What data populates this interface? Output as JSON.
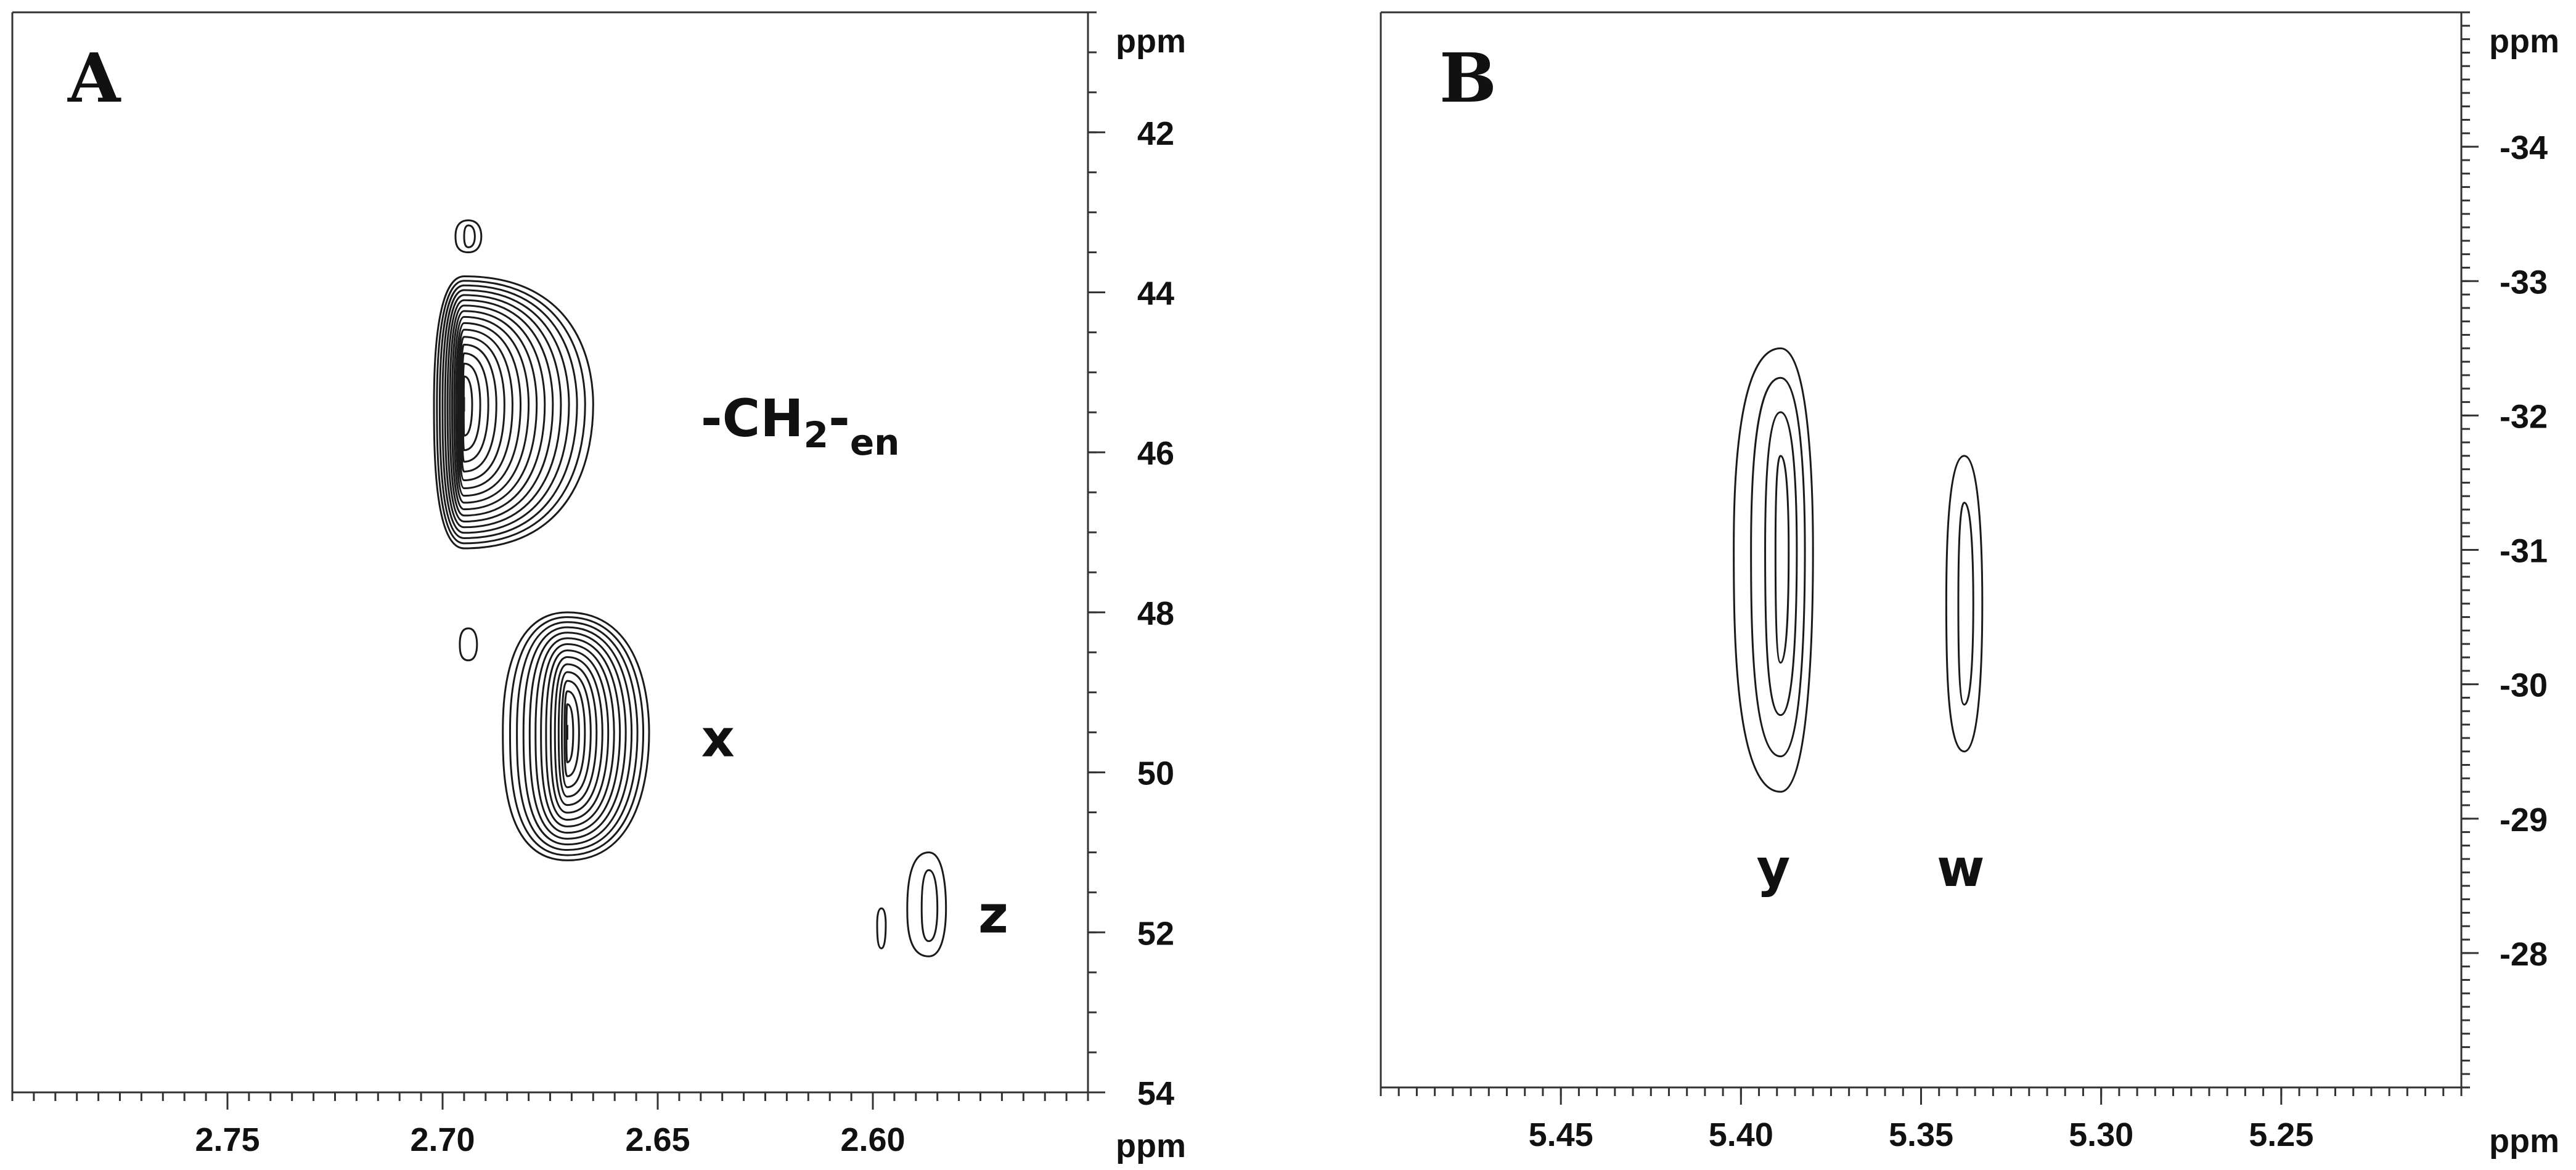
{
  "chart_data": [
    {
      "type": "contour",
      "panel_label": "A",
      "x_axis": {
        "unit": "ppm",
        "range": [
          2.8,
          2.55
        ],
        "ticks": [
          2.75,
          2.7,
          2.65,
          2.6
        ],
        "tick_labels": [
          "2.75",
          "2.70",
          "2.65",
          "2.60"
        ]
      },
      "y_axis": {
        "unit": "ppm",
        "position": "right",
        "range": [
          40.5,
          54
        ],
        "ticks": [
          42,
          44,
          46,
          48,
          50,
          52,
          54
        ],
        "tick_labels": [
          "42",
          "44",
          "46",
          "48",
          "50",
          "52",
          "54"
        ]
      },
      "peaks": [
        {
          "label": "-CH",
          "label_sub": "2",
          "label_tail": "-",
          "label_sub2": "en",
          "x": 2.695,
          "y": 45.4,
          "x_low": 2.702,
          "x_high": 2.665,
          "y_low": 43.8,
          "y_high": 47.2,
          "levels": 16,
          "label_at": [
            2.64,
            45.8
          ]
        },
        {
          "label": "x",
          "x": 2.671,
          "y": 49.5,
          "x_low": 2.686,
          "x_high": 2.652,
          "y_low": 48.0,
          "y_high": 51.1,
          "levels": 14,
          "label_at": [
            2.636,
            49.8
          ]
        },
        {
          "label": "z",
          "x": 2.587,
          "y": 51.7,
          "x_low": 2.592,
          "x_high": 2.583,
          "y_low": 51.0,
          "y_high": 52.3,
          "levels": 2,
          "label_at": [
            2.572,
            52.0
          ]
        },
        {
          "x": 2.598,
          "y": 51.9,
          "x_low": 2.599,
          "x_high": 2.597,
          "y_low": 51.7,
          "y_high": 52.2,
          "levels": 1
        },
        {
          "x": 2.694,
          "y": 43.3,
          "x_low": 2.697,
          "x_high": 2.691,
          "y_low": 43.1,
          "y_high": 43.5,
          "levels": 2
        },
        {
          "x": 2.694,
          "y": 48.4,
          "x_low": 2.696,
          "x_high": 2.692,
          "y_low": 48.2,
          "y_high": 48.6,
          "levels": 1
        }
      ]
    },
    {
      "type": "contour",
      "panel_label": "B",
      "x_axis": {
        "unit": "ppm",
        "range": [
          5.5,
          5.2
        ],
        "ticks": [
          5.45,
          5.4,
          5.35,
          5.3,
          5.25
        ],
        "tick_labels": [
          "5.45",
          "5.40",
          "5.35",
          "5.30",
          "5.25"
        ]
      },
      "y_axis": {
        "unit": "ppm",
        "position": "right",
        "range": [
          -35,
          -27
        ],
        "ticks": [
          -34,
          -33,
          -32,
          -31,
          -30,
          -29,
          -28
        ],
        "tick_labels": [
          "-34",
          "-33",
          "-32",
          "-31",
          "-30",
          "-29",
          "-28"
        ]
      },
      "peaks": [
        {
          "label": "y",
          "x": 5.389,
          "y": -31.0,
          "x_low": 5.402,
          "x_high": 5.38,
          "y_low": -32.5,
          "y_high": -29.2,
          "levels": 4,
          "label_at": [
            5.391,
            -28.5
          ]
        },
        {
          "label": "w",
          "x": 5.338,
          "y": -30.6,
          "x_low": 5.343,
          "x_high": 5.333,
          "y_low": -31.7,
          "y_high": -29.5,
          "levels": 2,
          "label_at": [
            5.339,
            -28.5
          ]
        }
      ]
    }
  ]
}
